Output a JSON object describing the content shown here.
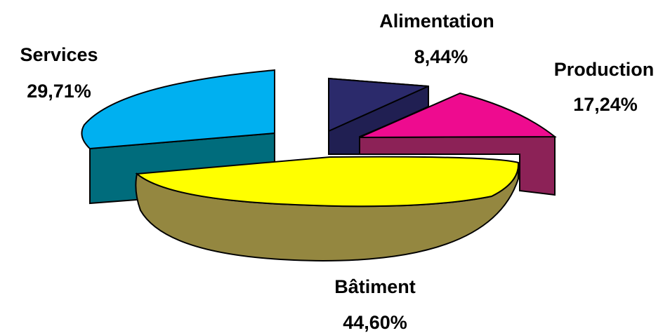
{
  "chart_data": {
    "type": "pie",
    "style": "3d-exploded",
    "slices": [
      {
        "label": "Alimentation",
        "value_label": "8,44%",
        "value": 8.44,
        "top_color": "#2b2a6b",
        "side_color": "#201f52"
      },
      {
        "label": "Production",
        "value_label": "17,24%",
        "value": 17.24,
        "top_color": "#ee0b8f",
        "side_color": "#8c2257"
      },
      {
        "label": "Bâtiment",
        "value_label": "44,60%",
        "value": 44.6,
        "top_color": "#ffff00",
        "side_color": "#948740"
      },
      {
        "label": "Services",
        "value_label": "29,71%",
        "value": 29.71,
        "top_color": "#00b0f0",
        "side_color": "#006c7c"
      }
    ]
  }
}
